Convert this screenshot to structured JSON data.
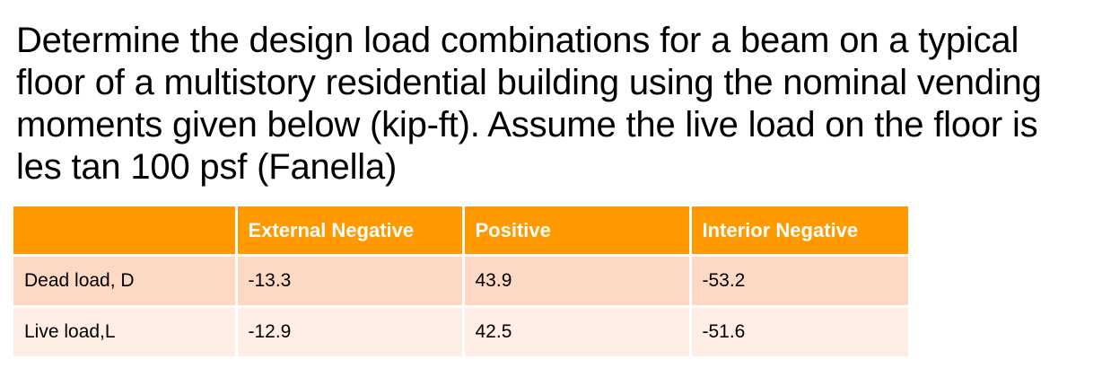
{
  "problem": {
    "lines": [
      "Determine the design load combinations for a beam on a typical",
      "floor of a multistory residential building using the nominal vending",
      "moments given below (kip-ft). Assume the live load on the floor is",
      "les tan 100 psf (Fanella)"
    ]
  },
  "table": {
    "headers": [
      "",
      "External Negative",
      "Positive",
      "Interior Negative"
    ],
    "rows": [
      [
        "Dead load, D",
        "-13.3",
        "43.9",
        "-53.2"
      ],
      [
        "Live load,L",
        "-12.9",
        "42.5",
        "-51.6"
      ]
    ]
  },
  "colors": {
    "header_bg": "#ff9900",
    "row_1_bg": "#fdd9c4",
    "row_2_bg": "#feeee5"
  }
}
